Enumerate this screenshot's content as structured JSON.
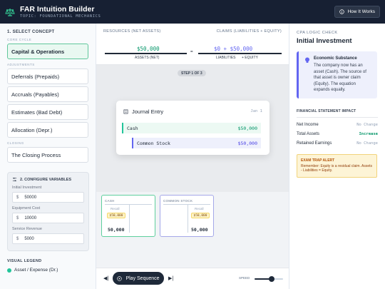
{
  "header": {
    "title": "FAR Intuition Builder",
    "subtitle": "TOPIC: FOUNDATIONAL MECHANICS",
    "help_button": "How It Works"
  },
  "sidebar": {
    "section_title": "1. SELECT CONCEPT",
    "groups": [
      {
        "label": "CORE CYCLE",
        "items": [
          {
            "label": "Capital & Operations",
            "active": true
          }
        ]
      },
      {
        "label": "ADJUSTMENTS",
        "items": [
          {
            "label": "Deferrals (Prepaids)"
          },
          {
            "label": "Accruals (Payables)"
          },
          {
            "label": "Estimates (Bad Debt)"
          },
          {
            "label": "Allocation (Depr.)"
          }
        ]
      },
      {
        "label": "CLOSING",
        "items": [
          {
            "label": "The Closing Process"
          }
        ]
      }
    ],
    "variables": {
      "title": "2. CONFIGURE VARIABLES",
      "fields": [
        {
          "label": "Initial Investment",
          "currency": "$",
          "value": "50000"
        },
        {
          "label": "Equipment Cost",
          "currency": "$",
          "value": "10000"
        },
        {
          "label": "Service Revenue",
          "currency": "$",
          "value": "5000"
        }
      ]
    },
    "legend": {
      "title": "VISUAL LEGEND",
      "items": [
        {
          "label": "Asset / Expense (Dr.)",
          "color": "#22c59a"
        }
      ]
    }
  },
  "equation": {
    "left_label": "RESOURCES (NET ASSETS)",
    "right_label": "CLAIMS (LIABILITIES + EQUITY)",
    "assets_value": "$50,000",
    "equals": "=",
    "claims_value": "$0 + $50,000",
    "assets_caption": "ASSETS (NET)",
    "liabilities_caption": "LIABILITIES",
    "equity_caption": "+ EQUITY"
  },
  "stage": {
    "step_label": "STEP 1 OF 3",
    "journal": {
      "title": "Journal Entry",
      "date": "Jan 1",
      "debit": {
        "account": "Cash",
        "amount": "$50,000"
      },
      "credit": {
        "account": "Common Stock",
        "amount": "$50,000"
      }
    }
  },
  "t_accounts": [
    {
      "name": "CASH",
      "recall": "Recall",
      "entry": "$50,000",
      "total": "50,000",
      "border": "#5fcf9e"
    },
    {
      "name": "COMMON STOCK",
      "recall": "Recall",
      "entry": "$50,000",
      "total": "50,000",
      "border": "#a5a8e8"
    }
  ],
  "controls": {
    "play_label": "Play Sequence",
    "speed_label": "SPEED",
    "speed_level": 0.6
  },
  "panel": {
    "label": "CPA LOGIC CHECK",
    "title": "Initial Investment",
    "economic": {
      "title": "Economic Substance",
      "text": "The company now has an asset (Cash). The source of that asset is owner claim (Equity). The equation expands equally."
    },
    "impact": {
      "title": "FINANCIAL STATEMENT IMPACT",
      "rows": [
        {
          "label": "Net Income",
          "value": "No Change",
          "kind": "none"
        },
        {
          "label": "Total Assets",
          "value": "Increase",
          "kind": "increase"
        },
        {
          "label": "Retained Earnings",
          "value": "No Change",
          "kind": "none"
        }
      ]
    },
    "trap": {
      "title": "EXAM TRAP ALERT",
      "text": "Remember: Equity is a residual claim. Assets - Liabilities = Equity."
    }
  }
}
